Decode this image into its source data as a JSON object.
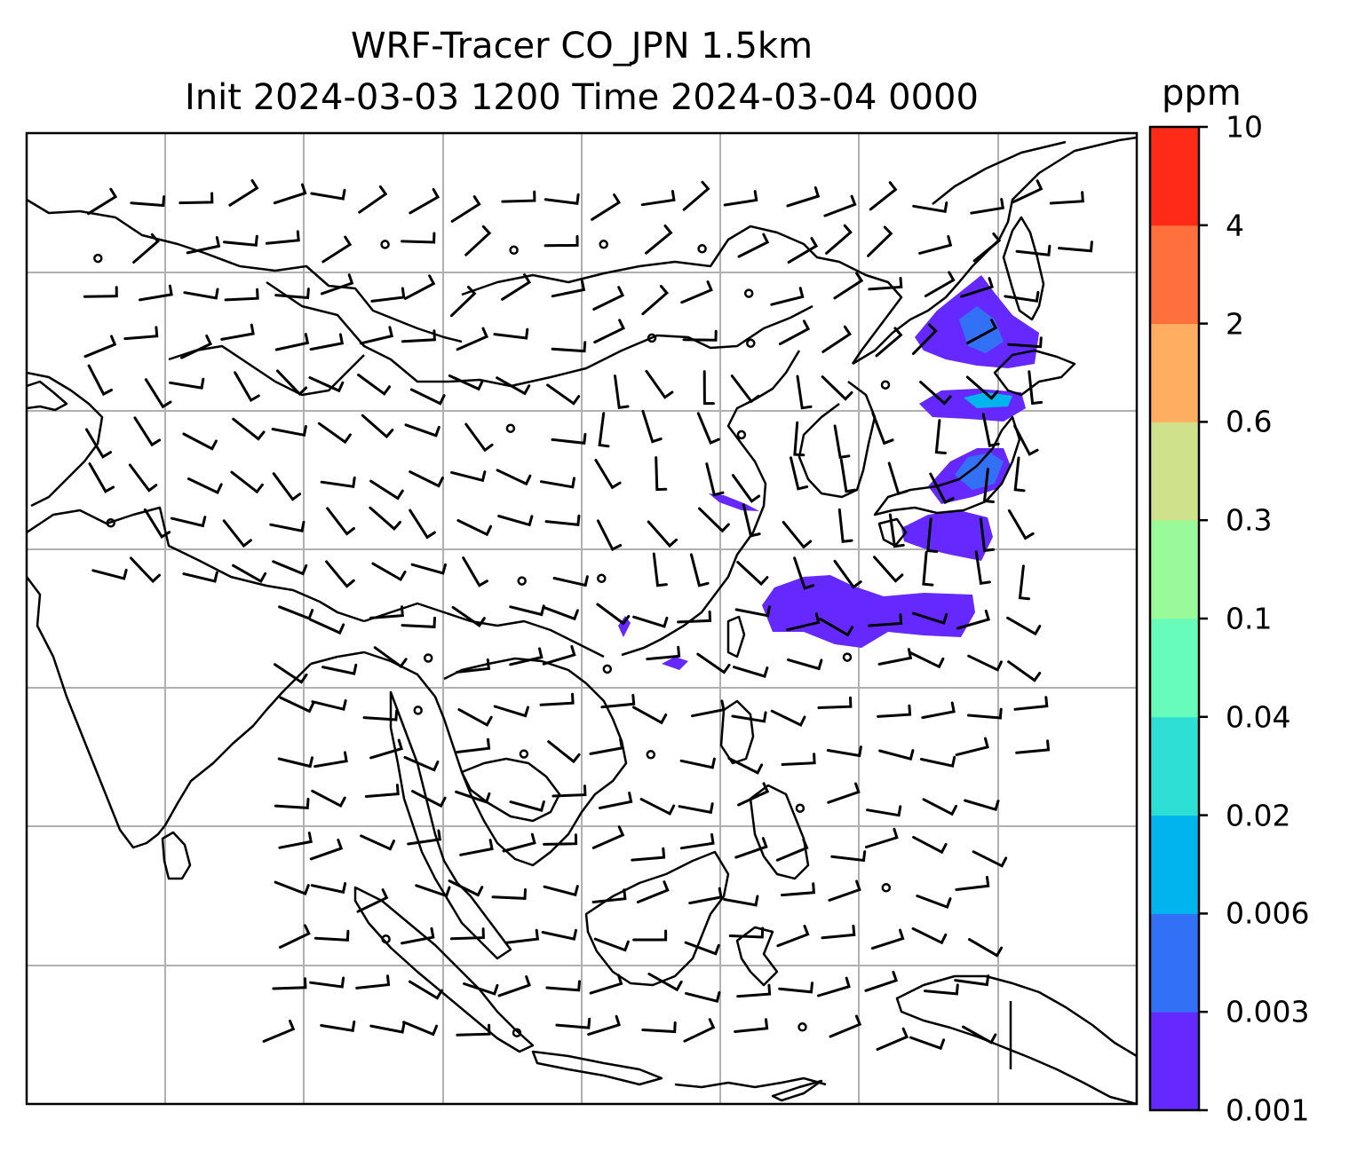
{
  "title_line1": "WRF-Tracer CO_JPN 1.5km",
  "title_line2": "Init 2024-03-03 1200 Time 2024-03-04 0000",
  "colorbar": {
    "unit": "ppm",
    "levels": [
      "0.001",
      "0.003",
      "0.006",
      "0.02",
      "0.04",
      "0.1",
      "0.3",
      "0.6",
      "2",
      "4",
      "10"
    ],
    "colors": [
      "#6528ff",
      "#3271f6",
      "#00b4ee",
      "#2ddfd4",
      "#68fcbc",
      "#98fa99",
      "#cfe18a",
      "#ffad60",
      "#ff703c",
      "#ff2a17"
    ]
  },
  "map": {
    "grid": "on",
    "coastline_color": "#000000",
    "plume_colors": [
      "#6528ff",
      "#3271f6",
      "#00b4ee"
    ]
  }
}
